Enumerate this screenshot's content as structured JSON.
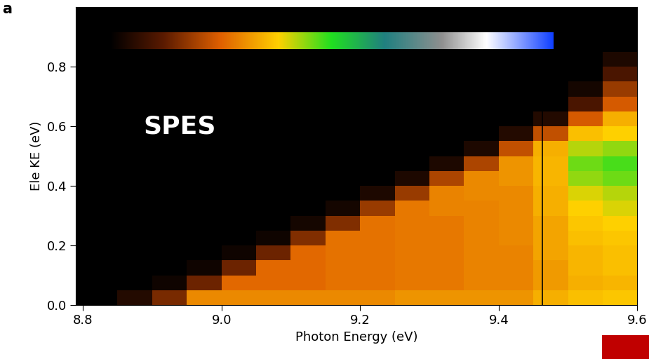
{
  "chart_data": {
    "type": "heatmap",
    "panel_label": "a",
    "annotation": "SPES",
    "x_label": "Photon Energy (eV)",
    "y_label": "Ele KE (eV)",
    "xlim": [
      8.79,
      9.6
    ],
    "ylim": [
      0,
      1.0
    ],
    "xticks": [
      8.8,
      {
        "value": 9.0,
        "label": "9.0"
      },
      9.2,
      9.4,
      9.6
    ],
    "yticks": [
      {
        "value": 0.0,
        "label": "0.0"
      },
      0.2,
      0.4,
      0.6,
      0.8
    ],
    "zlim": [
      0,
      1
    ],
    "vline": 9.463,
    "x_edges": [
      8.8,
      8.85,
      8.9,
      8.95,
      9.0,
      9.05,
      9.1,
      9.15,
      9.2,
      9.25,
      9.3,
      9.35,
      9.4,
      9.45,
      9.5,
      9.55,
      9.6
    ],
    "y_edges": [
      0.0,
      0.05,
      0.1,
      0.15,
      0.2,
      0.25,
      0.3,
      0.35,
      0.4,
      0.45,
      0.5,
      0.55,
      0.6,
      0.65,
      0.7,
      0.75,
      0.8,
      0.85,
      0.9,
      0.95,
      1.0
    ],
    "cells": [
      [
        0,
        0.05,
        0.15,
        0.3,
        0.3,
        0.3,
        0.3,
        0.3,
        0.3,
        0.31,
        0.31,
        0.31,
        0.31,
        0.34,
        0.36,
        0.37
      ],
      [
        0,
        0,
        0.02,
        0.14,
        0.26,
        0.26,
        0.26,
        0.27,
        0.27,
        0.28,
        0.28,
        0.29,
        0.29,
        0.32,
        0.34,
        0.35
      ],
      [
        0,
        0,
        0,
        0.02,
        0.14,
        0.26,
        0.26,
        0.27,
        0.27,
        0.28,
        0.28,
        0.29,
        0.29,
        0.32,
        0.35,
        0.36
      ],
      [
        0,
        0,
        0,
        0,
        0.02,
        0.14,
        0.26,
        0.27,
        0.27,
        0.28,
        0.28,
        0.29,
        0.29,
        0.33,
        0.35,
        0.36
      ],
      [
        0,
        0,
        0,
        0,
        0,
        0.02,
        0.16,
        0.27,
        0.27,
        0.28,
        0.28,
        0.29,
        0.3,
        0.33,
        0.36,
        0.37
      ],
      [
        0,
        0,
        0,
        0,
        0,
        0,
        0.03,
        0.16,
        0.27,
        0.28,
        0.28,
        0.29,
        0.3,
        0.33,
        0.37,
        0.38
      ],
      [
        0,
        0,
        0,
        0,
        0,
        0,
        0,
        0.03,
        0.18,
        0.28,
        0.29,
        0.29,
        0.3,
        0.34,
        0.38,
        0.4
      ],
      [
        0,
        0,
        0,
        0,
        0,
        0,
        0,
        0,
        0.04,
        0.18,
        0.29,
        0.3,
        0.3,
        0.34,
        0.4,
        0.42
      ],
      [
        0,
        0,
        0,
        0,
        0,
        0,
        0,
        0,
        0,
        0.04,
        0.2,
        0.3,
        0.31,
        0.35,
        0.44,
        0.46
      ],
      [
        0,
        0,
        0,
        0,
        0,
        0,
        0,
        0,
        0,
        0,
        0.04,
        0.2,
        0.31,
        0.35,
        0.46,
        0.48
      ],
      [
        0,
        0,
        0,
        0,
        0,
        0,
        0,
        0,
        0,
        0,
        0,
        0.04,
        0.22,
        0.34,
        0.42,
        0.44
      ],
      [
        0,
        0,
        0,
        0,
        0,
        0,
        0,
        0,
        0,
        0,
        0,
        0,
        0.05,
        0.22,
        0.36,
        0.38
      ],
      [
        0,
        0,
        0,
        0,
        0,
        0,
        0,
        0,
        0,
        0,
        0,
        0,
        0,
        0.05,
        0.24,
        0.34
      ],
      [
        0,
        0,
        0,
        0,
        0,
        0,
        0,
        0,
        0,
        0,
        0,
        0,
        0,
        0,
        0.1,
        0.24
      ],
      [
        0,
        0,
        0,
        0,
        0,
        0,
        0,
        0,
        0,
        0,
        0,
        0,
        0,
        0,
        0.03,
        0.18
      ],
      [
        0,
        0,
        0,
        0,
        0,
        0,
        0,
        0,
        0,
        0,
        0,
        0,
        0,
        0,
        0,
        0.1
      ],
      [
        0,
        0,
        0,
        0,
        0,
        0,
        0,
        0,
        0,
        0,
        0,
        0,
        0,
        0,
        0,
        0.04
      ],
      [
        0,
        0,
        0,
        0,
        0,
        0,
        0,
        0,
        0,
        0,
        0,
        0,
        0,
        0,
        0,
        0
      ],
      [
        0,
        0,
        0,
        0,
        0,
        0,
        0,
        0,
        0,
        0,
        0,
        0,
        0,
        0,
        0,
        0
      ],
      [
        0,
        0,
        0,
        0,
        0,
        0,
        0,
        0,
        0,
        0,
        0,
        0,
        0,
        0,
        0,
        0
      ]
    ]
  }
}
